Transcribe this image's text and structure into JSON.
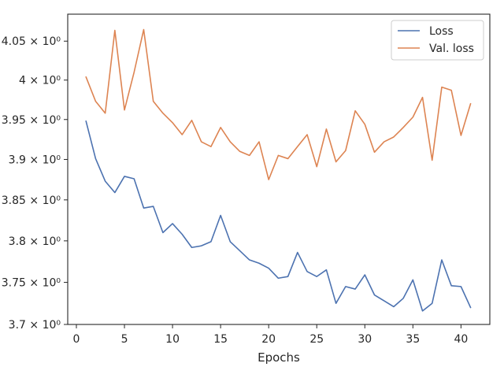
{
  "chart_data": {
    "type": "line",
    "title": "",
    "xlabel": "Epochs",
    "ylabel": "",
    "xlim": [
      -0.9,
      43.0
    ],
    "ylim": [
      3.7,
      4.085
    ],
    "yscale": "log",
    "grid": false,
    "legend_position": "top-right",
    "x_ticks": [
      0,
      5,
      10,
      15,
      20,
      25,
      30,
      35,
      40
    ],
    "y_ticks": [
      {
        "value": 3.7,
        "label": "3.7 × 10⁰"
      },
      {
        "value": 3.75,
        "label": "3.75 × 10⁰"
      },
      {
        "value": 3.8,
        "label": "3.8 × 10⁰"
      },
      {
        "value": 3.85,
        "label": "3.85 × 10⁰"
      },
      {
        "value": 3.9,
        "label": "3.9 × 10⁰"
      },
      {
        "value": 3.95,
        "label": "3.95 × 10⁰"
      },
      {
        "value": 4.0,
        "label": "4 × 10⁰"
      },
      {
        "value": 4.05,
        "label": "4.05 × 10⁰"
      }
    ],
    "x": [
      1,
      2,
      3,
      4,
      5,
      6,
      7,
      8,
      9,
      10,
      11,
      12,
      13,
      14,
      15,
      16,
      17,
      18,
      19,
      20,
      21,
      22,
      23,
      24,
      25,
      26,
      27,
      28,
      29,
      30,
      31,
      32,
      33,
      34,
      35,
      36,
      37,
      38,
      39,
      40,
      41
    ],
    "series": [
      {
        "name": "Loss",
        "color": "#4c72b0",
        "values": [
          3.948,
          3.901,
          3.873,
          3.859,
          3.879,
          3.876,
          3.84,
          3.842,
          3.81,
          3.821,
          3.808,
          3.792,
          3.794,
          3.799,
          3.831,
          3.799,
          3.788,
          3.777,
          3.773,
          3.767,
          3.755,
          3.757,
          3.786,
          3.763,
          3.757,
          3.765,
          3.725,
          3.745,
          3.742,
          3.759,
          3.735,
          3.728,
          3.721,
          3.731,
          3.753,
          3.716,
          3.725,
          3.777,
          3.746,
          3.745,
          3.72
        ]
      },
      {
        "name": "Val. loss",
        "color": "#dd8452",
        "values": [
          4.004,
          3.973,
          3.958,
          4.064,
          3.962,
          4.01,
          4.065,
          3.973,
          3.958,
          3.946,
          3.931,
          3.949,
          3.922,
          3.916,
          3.94,
          3.922,
          3.91,
          3.905,
          3.922,
          3.875,
          3.905,
          3.901,
          3.916,
          3.931,
          3.891,
          3.938,
          3.897,
          3.911,
          3.961,
          3.944,
          3.909,
          3.922,
          3.928,
          3.94,
          3.953,
          3.978,
          3.899,
          3.991,
          3.987,
          3.93,
          3.97
        ]
      }
    ]
  }
}
